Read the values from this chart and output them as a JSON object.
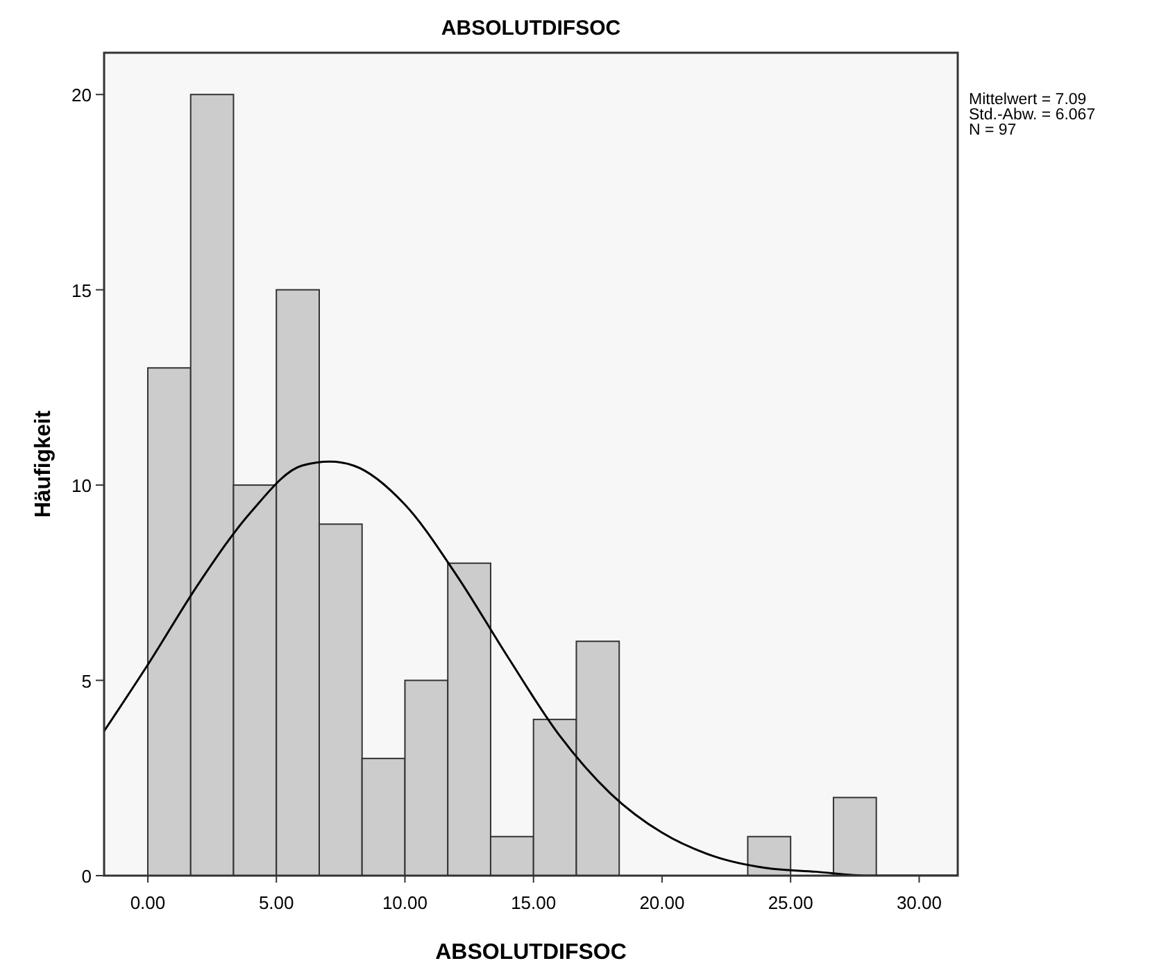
{
  "chart_data": {
    "type": "histogram",
    "title": "ABSOLUTDIFSOC",
    "xlabel": "ABSOLUTDIFSOC",
    "ylabel": "Häufigkeit",
    "bins": [
      0,
      1.667,
      3.333,
      5,
      6.667,
      8.333,
      10,
      11.667,
      13.333,
      15,
      16.667,
      18.333,
      20,
      21.667,
      23.333,
      25,
      26.667,
      28.333
    ],
    "values": [
      13,
      20,
      10,
      15,
      9,
      3,
      5,
      8,
      1,
      4,
      6,
      0,
      0,
      0,
      1,
      0,
      2
    ],
    "color": "#cccccc",
    "series": [
      {
        "type": "line",
        "color": "#000000",
        "x": [
          -1.7,
          0,
          2,
          4,
          6,
          7.09,
          8,
          10,
          12,
          14,
          16,
          18,
          20,
          22,
          24,
          26,
          28,
          30,
          31.5
        ],
        "values": [
          3.7,
          5.4,
          7.5,
          9.3,
          10.5,
          10.6,
          10.5,
          9.5,
          7.7,
          5.6,
          3.6,
          2.1,
          1.1,
          0.5,
          0.2,
          0.1,
          0,
          0,
          0
        ]
      }
    ],
    "xlim": [
      -1.7,
      31.5
    ],
    "ylim": [
      0,
      21.07
    ],
    "xticks": [
      {
        "value": 0,
        "label": "0.00"
      },
      {
        "value": 5,
        "label": "5.00"
      },
      {
        "value": 10,
        "label": "10.00"
      },
      {
        "value": 15,
        "label": "15.00"
      },
      {
        "value": 20,
        "label": "20.00"
      },
      {
        "value": 25,
        "label": "25.00"
      },
      {
        "value": 30,
        "label": "30.00"
      }
    ],
    "yticks": [
      0,
      5,
      10,
      15,
      20
    ],
    "grid": false,
    "annotations": [
      "Mittelwert = 7.09",
      "Std.-Abw. = 6.067",
      "N = 97"
    ]
  }
}
